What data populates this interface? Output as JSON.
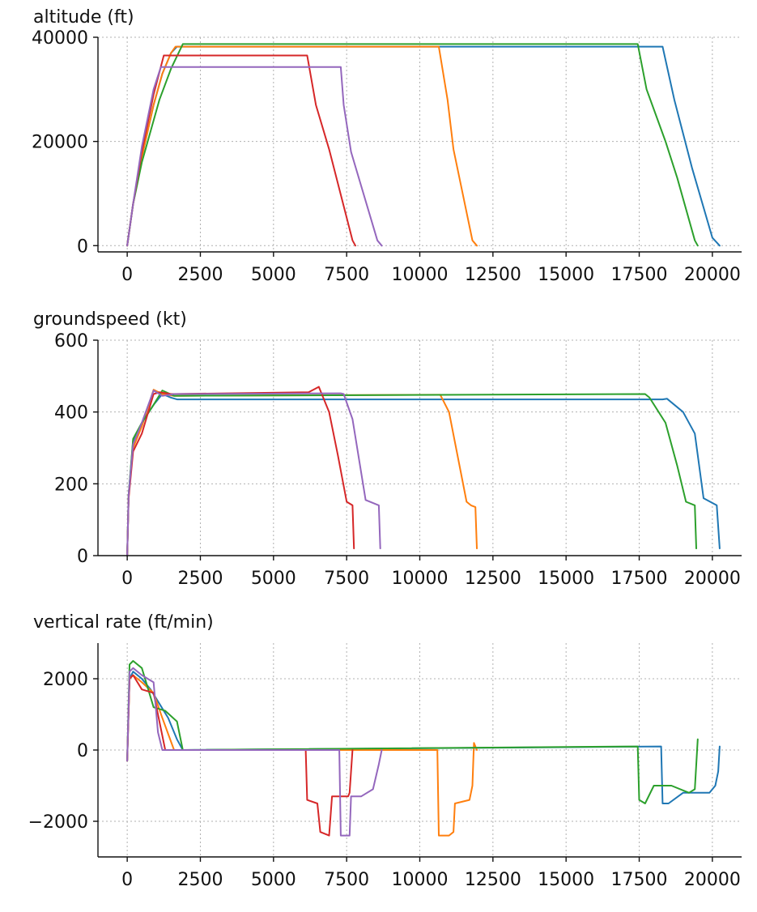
{
  "chart_data": [
    {
      "type": "line",
      "title": "altitude (ft)",
      "xlim": [
        -1000,
        21000
      ],
      "ylim": [
        -1200,
        40000
      ],
      "xticks": [
        0,
        2500,
        5000,
        7500,
        10000,
        12500,
        15000,
        17500,
        20000
      ],
      "xtick_labels": [
        "0",
        "2500",
        "5000",
        "7500",
        "10000",
        "12500",
        "15000",
        "17500",
        "20000"
      ],
      "yticks": [
        0,
        20000,
        40000
      ],
      "ytick_labels": [
        "0",
        "20000",
        "40000"
      ],
      "grid": true,
      "series": [
        {
          "color": "#1f77b4",
          "x": [
            0,
            200,
            500,
            900,
            1200,
            1500,
            1700,
            18300,
            18700,
            19300,
            20000,
            20250
          ],
          "y": [
            0,
            8000,
            17000,
            27000,
            33000,
            37000,
            38200,
            38200,
            28000,
            15000,
            1500,
            0
          ]
        },
        {
          "color": "#ff7f0e",
          "x": [
            0,
            200,
            500,
            900,
            1200,
            1500,
            1650,
            10650,
            10950,
            11150,
            11800,
            11950
          ],
          "y": [
            0,
            8000,
            17000,
            27000,
            33000,
            37000,
            38200,
            38200,
            28000,
            18500,
            1000,
            0
          ]
        },
        {
          "color": "#2ca02c",
          "x": [
            0,
            200,
            500,
            1100,
            1500,
            1900,
            17450,
            17750,
            18400,
            18800,
            19400,
            19500
          ],
          "y": [
            0,
            8000,
            16000,
            28000,
            34000,
            38700,
            38700,
            30000,
            20000,
            13000,
            1000,
            0
          ]
        },
        {
          "color": "#d62728",
          "x": [
            0,
            200,
            500,
            900,
            1250,
            6150,
            6450,
            6900,
            7700,
            7800
          ],
          "y": [
            0,
            8000,
            18000,
            29000,
            36500,
            36500,
            27000,
            18500,
            1000,
            0
          ]
        },
        {
          "color": "#9467bd",
          "x": [
            0,
            200,
            500,
            900,
            1150,
            7300,
            7400,
            7650,
            8550,
            8700
          ],
          "y": [
            0,
            8000,
            19000,
            30000,
            34300,
            34300,
            27000,
            18000,
            1000,
            0
          ]
        }
      ]
    },
    {
      "type": "line",
      "title": "groundspeed (kt)",
      "xlim": [
        -1000,
        21000
      ],
      "ylim": [
        0,
        600
      ],
      "xticks": [
        0,
        2500,
        5000,
        7500,
        10000,
        12500,
        15000,
        17500,
        20000
      ],
      "xtick_labels": [
        "0",
        "2500",
        "5000",
        "7500",
        "10000",
        "12500",
        "15000",
        "17500",
        "20000"
      ],
      "yticks": [
        0,
        200,
        400,
        600
      ],
      "ytick_labels": [
        "0",
        "200",
        "400",
        "600"
      ],
      "grid": true,
      "series": [
        {
          "color": "#1f77b4",
          "x": [
            0,
            50,
            200,
            500,
            900,
            1200,
            1500,
            1700,
            18300,
            18450,
            19000,
            19400,
            19700,
            20150,
            20250
          ],
          "y": [
            0,
            170,
            320,
            370,
            420,
            450,
            440,
            435,
            435,
            437,
            400,
            340,
            160,
            140,
            20
          ]
        },
        {
          "color": "#ff7f0e",
          "x": [
            0,
            50,
            200,
            500,
            900,
            1200,
            1600,
            10700,
            11000,
            11600,
            11750,
            11900,
            11950
          ],
          "y": [
            0,
            170,
            300,
            360,
            462,
            450,
            445,
            448,
            400,
            150,
            140,
            135,
            20
          ]
        },
        {
          "color": "#2ca02c",
          "x": [
            0,
            50,
            200,
            500,
            900,
            1200,
            1600,
            17700,
            17850,
            18400,
            18800,
            19100,
            19400,
            19450
          ],
          "y": [
            0,
            170,
            325,
            370,
            420,
            460,
            445,
            450,
            440,
            370,
            250,
            150,
            140,
            20
          ]
        },
        {
          "color": "#d62728",
          "x": [
            0,
            50,
            200,
            500,
            900,
            1100,
            1500,
            6200,
            6550,
            6900,
            7200,
            7500,
            7700,
            7750
          ],
          "y": [
            0,
            160,
            290,
            340,
            450,
            455,
            450,
            455,
            470,
            400,
            280,
            150,
            140,
            20
          ]
        },
        {
          "color": "#9467bd",
          "x": [
            0,
            50,
            200,
            500,
            900,
            1200,
            1600,
            7300,
            7400,
            7700,
            8150,
            8600,
            8650
          ],
          "y": [
            0,
            170,
            310,
            370,
            460,
            445,
            450,
            452,
            450,
            380,
            155,
            140,
            20
          ]
        }
      ]
    },
    {
      "type": "line",
      "title": "vertical rate (ft/min)",
      "xlim": [
        -1000,
        21000
      ],
      "ylim": [
        -3000,
        3000
      ],
      "xticks": [
        0,
        2500,
        5000,
        7500,
        10000,
        12500,
        15000,
        17500,
        20000
      ],
      "xtick_labels": [
        "0",
        "2500",
        "5000",
        "7500",
        "10000",
        "12500",
        "15000",
        "17500",
        "20000"
      ],
      "yticks": [
        -2000,
        0,
        2000
      ],
      "ytick_labels": [
        "−2000",
        "0",
        "2000"
      ],
      "grid": true,
      "series": [
        {
          "color": "#1f77b4",
          "x": [
            0,
            80,
            200,
            500,
            800,
            1100,
            1400,
            1700,
            1900,
            18250,
            18300,
            18500,
            19000,
            19500,
            19900,
            20100,
            20200,
            20250
          ],
          "y": [
            -300,
            2000,
            2200,
            2000,
            1700,
            1300,
            900,
            300,
            0,
            100,
            -1500,
            -1500,
            -1200,
            -1200,
            -1200,
            -1000,
            -600,
            100
          ]
        },
        {
          "color": "#ff7f0e",
          "x": [
            0,
            80,
            200,
            500,
            900,
            1200,
            1600,
            10600,
            10650,
            11000,
            11150,
            11200,
            11700,
            11800,
            11850,
            11950
          ],
          "y": [
            -300,
            2000,
            2100,
            1900,
            1600,
            900,
            0,
            0,
            -2400,
            -2400,
            -2300,
            -1500,
            -1400,
            -1000,
            200,
            0
          ]
        },
        {
          "color": "#2ca02c",
          "x": [
            0,
            80,
            200,
            500,
            900,
            1300,
            1700,
            1900,
            17450,
            17500,
            17700,
            18000,
            18600,
            19200,
            19400,
            19500
          ],
          "y": [
            -300,
            2400,
            2500,
            2300,
            1200,
            1100,
            800,
            0,
            100,
            -1400,
            -1500,
            -1000,
            -1000,
            -1200,
            -1100,
            300
          ]
        },
        {
          "color": "#d62728",
          "x": [
            0,
            80,
            200,
            500,
            900,
            1100,
            1300,
            6100,
            6150,
            6500,
            6600,
            6900,
            7000,
            7550,
            7600,
            7700
          ],
          "y": [
            -300,
            2000,
            2100,
            1700,
            1600,
            800,
            0,
            0,
            -1400,
            -1500,
            -2300,
            -2400,
            -1300,
            -1300,
            -1200,
            0
          ]
        },
        {
          "color": "#9467bd",
          "x": [
            0,
            80,
            200,
            500,
            900,
            1050,
            1200,
            7250,
            7300,
            7600,
            7650,
            8000,
            8400,
            8600,
            8700
          ],
          "y": [
            -300,
            2200,
            2300,
            2100,
            1900,
            500,
            0,
            0,
            -2400,
            -2400,
            -1300,
            -1300,
            -1100,
            -400,
            0
          ]
        }
      ]
    }
  ]
}
